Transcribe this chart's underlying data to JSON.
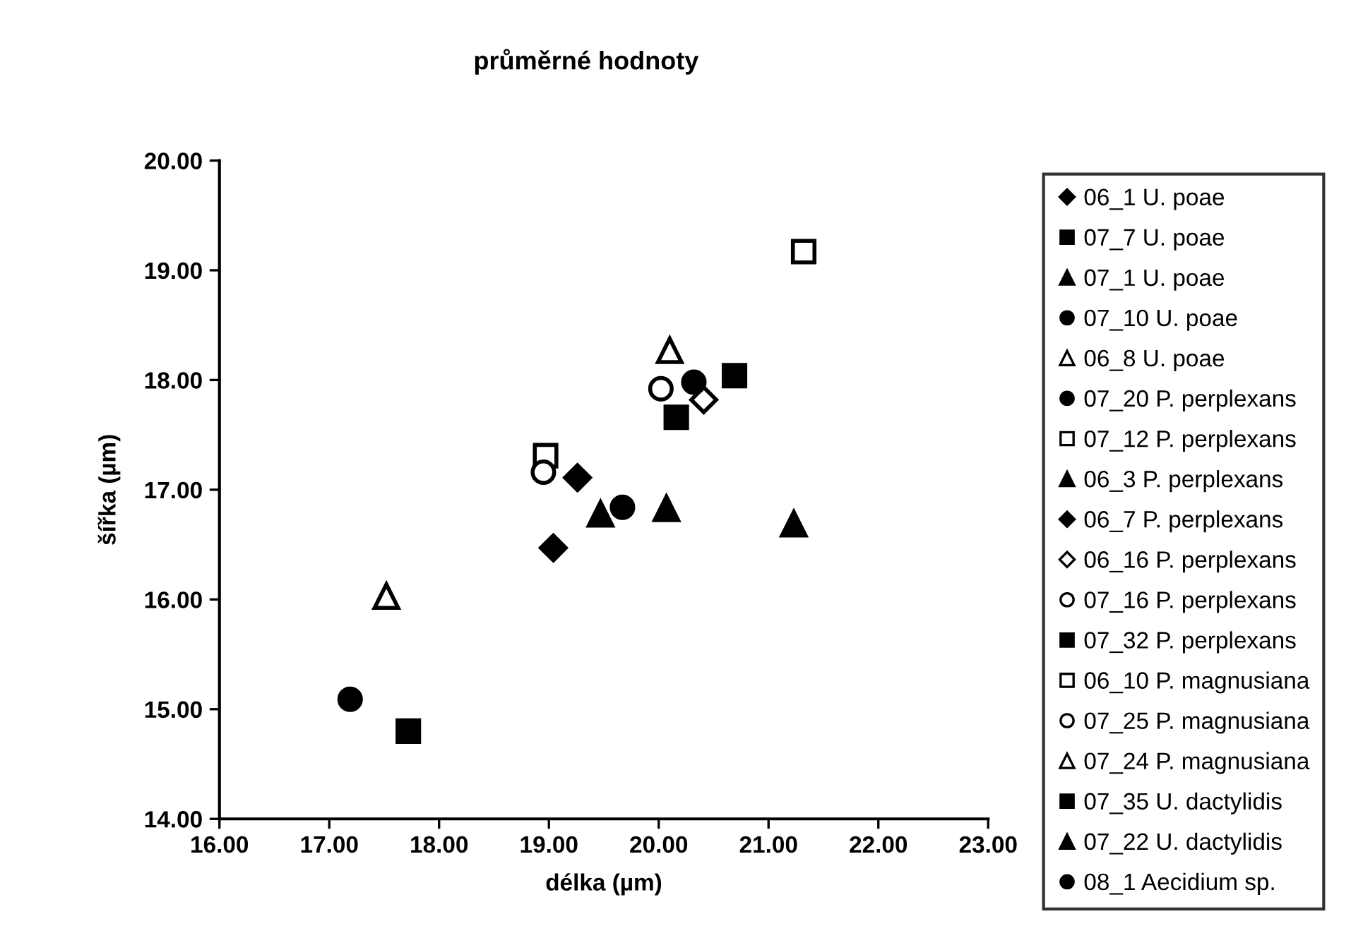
{
  "chart_data": {
    "type": "scatter",
    "title": "průměrné hodnoty",
    "xlabel": "délka (µm)",
    "ylabel": "šířka (µm)",
    "xlim": [
      16,
      23
    ],
    "xticks": [
      {
        "value": 16,
        "label": "16.00"
      },
      {
        "value": 17,
        "label": "17.00"
      },
      {
        "value": 18,
        "label": "18.00"
      },
      {
        "value": 19,
        "label": "19.00"
      },
      {
        "value": 20,
        "label": "20.00"
      },
      {
        "value": 21,
        "label": "21.00"
      },
      {
        "value": 22,
        "label": "22.00"
      },
      {
        "value": 23,
        "label": "23.00"
      }
    ],
    "ylim": [
      14,
      20
    ],
    "yticks": [
      {
        "value": 14,
        "label": "14.00"
      },
      {
        "value": 15,
        "label": "15.00"
      },
      {
        "value": 16,
        "label": "16.00"
      },
      {
        "value": 17,
        "label": "17.00"
      },
      {
        "value": 18,
        "label": "18.00"
      },
      {
        "value": 19,
        "label": "19.00"
      },
      {
        "value": 20,
        "label": "20.00"
      }
    ],
    "legend": "right",
    "series": [
      {
        "name": "06_1 U. poae",
        "marker": "diamond",
        "color": "#000000",
        "x": [
          19.04
        ],
        "values": [
          16.47
        ]
      },
      {
        "name": "07_7 U. poae",
        "marker": "square",
        "color": "#000000",
        "x": [
          17.72
        ],
        "values": [
          14.8
        ]
      },
      {
        "name": "07_1 U. poae",
        "marker": "triangle",
        "color": "#000000",
        "x": [
          19.47
        ],
        "values": [
          16.78
        ]
      },
      {
        "name": "07_10 U. poae",
        "marker": "circle",
        "color": "#000000",
        "x": [
          17.19
        ],
        "values": [
          15.09
        ]
      },
      {
        "name": "06_8 U. poae",
        "marker": "triangle",
        "color": "#ffffff",
        "x": [
          17.52
        ],
        "values": [
          16.03
        ]
      },
      {
        "name": "07_20 P. perplexans",
        "marker": "circle",
        "color": "#000000",
        "x": [
          19.67
        ],
        "values": [
          16.84
        ]
      },
      {
        "name": "07_12 P. perplexans",
        "marker": "square",
        "color": "#ffffff",
        "x": [
          18.97
        ],
        "values": [
          17.31
        ]
      },
      {
        "name": "06_3 P. perplexans",
        "marker": "triangle",
        "color": "#000000",
        "x": [
          20.07
        ],
        "values": [
          16.83
        ]
      },
      {
        "name": "06_7 P. perplexans",
        "marker": "diamond",
        "color": "#000000",
        "x": [
          19.26
        ],
        "values": [
          17.11
        ]
      },
      {
        "name": "06_16 P. perplexans",
        "marker": "diamond",
        "color": "#ffffff",
        "x": [
          20.41
        ],
        "values": [
          17.82
        ]
      },
      {
        "name": "07_16 P. perplexans",
        "marker": "circle",
        "color": "#ffffff",
        "x": [
          18.95
        ],
        "values": [
          17.16
        ]
      },
      {
        "name": "07_32 P. perplexans",
        "marker": "square",
        "color": "#000000",
        "x": [
          20.16
        ],
        "values": [
          17.66
        ]
      },
      {
        "name": "06_10 P. magnusiana",
        "marker": "square",
        "color": "#ffffff",
        "x": [
          21.32
        ],
        "values": [
          19.17
        ]
      },
      {
        "name": "07_25 P. magnusiana",
        "marker": "circle",
        "color": "#ffffff",
        "x": [
          20.02
        ],
        "values": [
          17.92
        ]
      },
      {
        "name": "07_24 P. magnusiana",
        "marker": "triangle",
        "color": "#ffffff",
        "x": [
          20.1
        ],
        "values": [
          18.27
        ]
      },
      {
        "name": "07_35 U. dactylidis",
        "marker": "square",
        "color": "#000000",
        "x": [
          20.69
        ],
        "values": [
          18.04
        ]
      },
      {
        "name": "07_22 U. dactylidis",
        "marker": "triangle",
        "color": "#000000",
        "x": [
          21.23
        ],
        "values": [
          16.69
        ]
      },
      {
        "name": "08_1 Aecidium sp.",
        "marker": "circle",
        "color": "#000000",
        "x": [
          20.32
        ],
        "values": [
          17.98
        ]
      }
    ]
  }
}
